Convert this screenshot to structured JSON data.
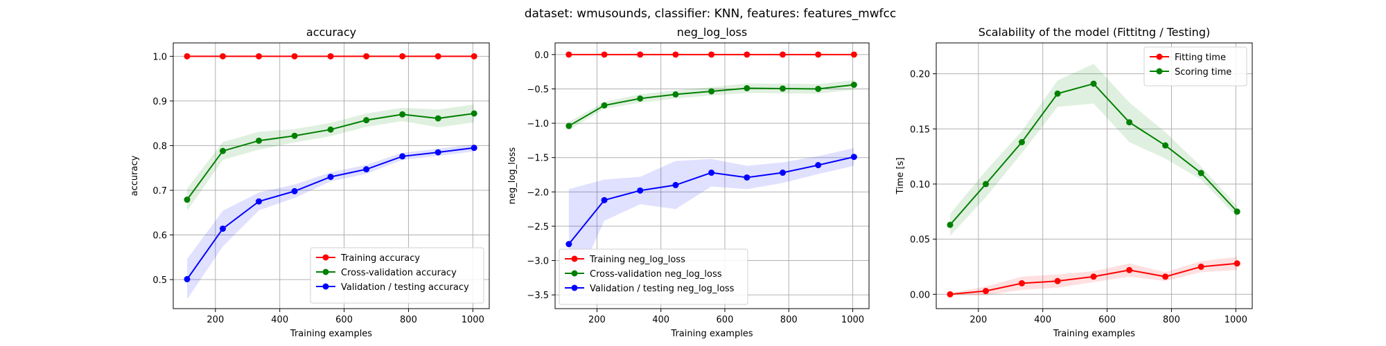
{
  "suptitle": "dataset: wmusounds, classifier: KNN, features: features_mwfcc",
  "chart_data": [
    {
      "type": "line",
      "title": "accuracy",
      "xlabel": "Training examples",
      "ylabel": "accuracy",
      "xlim": [
        69,
        1051
      ],
      "ylim": [
        0.435,
        1.03
      ],
      "xticks": [
        200,
        400,
        600,
        800,
        1000
      ],
      "yticks": [
        0.5,
        0.6,
        0.7,
        0.8,
        0.9,
        1.0
      ],
      "ytick_labels": [
        "0.5",
        "0.6",
        "0.7",
        "0.8",
        "0.9",
        "1.0"
      ],
      "grid": true,
      "legend_position": "lower-right",
      "x": [
        112,
        223,
        335,
        446,
        558,
        669,
        781,
        892,
        1004
      ],
      "series": [
        {
          "name": "Training accuracy",
          "color": "#ff0000",
          "values": [
            1.0,
            1.0,
            1.0,
            1.0,
            1.0,
            1.0,
            1.0,
            1.0,
            1.0
          ],
          "band": [
            0,
            0,
            0,
            0,
            0,
            0,
            0,
            0,
            0
          ]
        },
        {
          "name": "Cross-validation accuracy",
          "color": "#008000",
          "values": [
            0.679,
            0.788,
            0.811,
            0.822,
            0.836,
            0.857,
            0.87,
            0.861,
            0.872
          ],
          "band": [
            0.025,
            0.02,
            0.02,
            0.015,
            0.015,
            0.015,
            0.015,
            0.02,
            0.02
          ]
        },
        {
          "name": "Validation / testing accuracy",
          "color": "#0000ff",
          "values": [
            0.501,
            0.614,
            0.675,
            0.698,
            0.73,
            0.747,
            0.776,
            0.785,
            0.795
          ],
          "band": [
            0.045,
            0.04,
            0.02,
            0.015,
            0.01,
            0.01,
            0.008,
            0.008,
            0.008
          ]
        }
      ]
    },
    {
      "type": "line",
      "title": "neg_log_loss",
      "xlabel": "Training examples",
      "ylabel": "neg_log_loss",
      "xlim": [
        69,
        1051
      ],
      "ylim": [
        -3.7,
        0.17
      ],
      "xticks": [
        200,
        400,
        600,
        800,
        1000
      ],
      "yticks": [
        -3.5,
        -3.0,
        -2.5,
        -2.0,
        -1.5,
        -1.0,
        -0.5,
        0.0
      ],
      "ytick_labels": [
        "−3.5",
        "−3.0",
        "−2.5",
        "−2.0",
        "−1.5",
        "−1.0",
        "−0.5",
        "0.0"
      ],
      "grid": true,
      "legend_position": "lower-left",
      "x": [
        112,
        223,
        335,
        446,
        558,
        669,
        781,
        892,
        1004
      ],
      "series": [
        {
          "name": "Training neg_log_loss",
          "color": "#ff0000",
          "values": [
            0.0,
            0.0,
            0.0,
            0.0,
            0.0,
            0.0,
            0.0,
            0.0,
            0.0
          ],
          "band": [
            0,
            0,
            0,
            0,
            0,
            0,
            0,
            0,
            0
          ]
        },
        {
          "name": "Cross-validation neg_log_loss",
          "color": "#008000",
          "values": [
            -1.04,
            -0.74,
            -0.64,
            -0.58,
            -0.535,
            -0.49,
            -0.495,
            -0.5,
            -0.44
          ],
          "band": [
            0.06,
            0.05,
            0.06,
            0.06,
            0.06,
            0.07,
            0.07,
            0.07,
            0.07
          ]
        },
        {
          "name": "Validation / testing neg_log_loss",
          "color": "#0000ff",
          "values": [
            -2.76,
            -2.12,
            -1.98,
            -1.9,
            -1.72,
            -1.79,
            -1.72,
            -1.61,
            -1.49
          ],
          "band": [
            0.8,
            0.3,
            0.2,
            0.35,
            0.2,
            0.17,
            0.15,
            0.13,
            0.13
          ]
        }
      ]
    },
    {
      "type": "line",
      "title": "Scalability of the model (Fittitng / Testing)",
      "xlabel": "Training examples",
      "ylabel": "Time [s]",
      "xlim": [
        69,
        1051
      ],
      "ylim": [
        -0.013,
        0.228
      ],
      "xticks": [
        200,
        400,
        600,
        800,
        1000
      ],
      "yticks": [
        0.0,
        0.05,
        0.1,
        0.15,
        0.2
      ],
      "ytick_labels": [
        "0.00",
        "0.05",
        "0.10",
        "0.15",
        "0.20"
      ],
      "grid": true,
      "legend_position": "upper-right",
      "x": [
        112,
        223,
        335,
        446,
        558,
        669,
        781,
        892,
        1004
      ],
      "series": [
        {
          "name": "Fitting time",
          "color": "#ff0000",
          "values": [
            0.0,
            0.003,
            0.01,
            0.012,
            0.016,
            0.022,
            0.016,
            0.025,
            0.028
          ],
          "band": [
            0.001,
            0.004,
            0.006,
            0.006,
            0.005,
            0.006,
            0.004,
            0.005,
            0.006
          ]
        },
        {
          "name": "Scoring time",
          "color": "#008000",
          "values": [
            0.063,
            0.1,
            0.138,
            0.182,
            0.191,
            0.156,
            0.135,
            0.11,
            0.075
          ],
          "band": [
            0.01,
            0.012,
            0.01,
            0.012,
            0.018,
            0.018,
            0.012,
            0.006,
            0.005
          ]
        }
      ]
    }
  ]
}
